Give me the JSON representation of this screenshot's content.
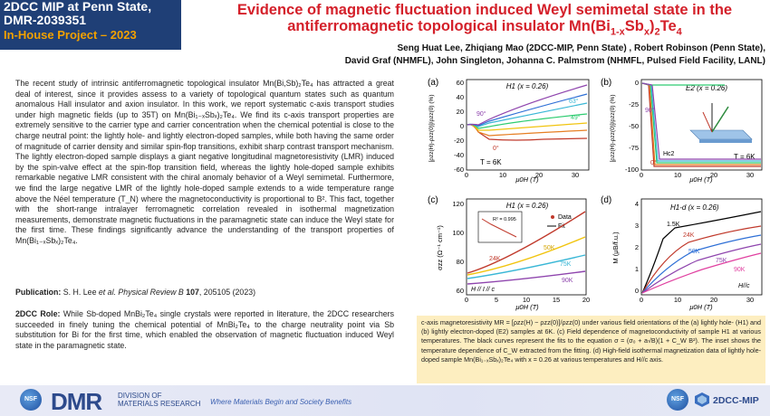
{
  "header": {
    "line1": "2DCC MIP at Penn State,",
    "line2": "DMR-2039351",
    "project": "In-House Project – 2023"
  },
  "title": {
    "line1": "Evidence of magnetic fluctuation induced Weyl semimetal state in the",
    "line2_pre": "antiferromagnetic topological insulator Mn(Bi",
    "line2_sub1": "1-x",
    "line2_mid": "Sb",
    "line2_sub2": "x",
    "line2_mid2": ")",
    "line2_sub3": "2",
    "line2_post": "Te",
    "line2_sub4": "4"
  },
  "authors": {
    "line1": "Seng Huat Lee, Zhiqiang Mao (2DCC-MIP, Penn State) , Robert Robinson (Penn State),",
    "line2": "David Graf (NHMFL), John Singleton, Johanna C. Palmstrom (NHMFL, Pulsed Field Facility, LANL)"
  },
  "body_text": "The recent study of intrinsic antiferromagnetic topological insulator Mn(Bi,Sb)₂Te₄ has attracted a great deal of interest, since it provides assess to a variety of topological quantum states such as quantum anomalous Hall insulator and axion insulator. In this work, we report systematic c-axis transport studies under high magnetic fields (up to 35T) on Mn(Bi₁₋ₓSbₓ)₂Te₄. We find its c-axis transport properties are extremely sensitive to the carrier type and carrier concentration when the chemical potential is close to the charge neutral point: the lightly hole- and lightly electron-doped samples, while both having the same order of magnitude of carrier density and similar spin-flop transitions, exhibit sharp contrast transport mechanism. The lightly electron-doped sample displays a giant negative longitudinal magnetoresistivity (LMR) induced by the spin-valve effect at the spin-flop transition field, whereas the lightly hole-doped sample exhibits remarkable negative LMR consistent with the chiral anomaly behavior of a Weyl semimetal. Furthermore, we find the large negative LMR of the lightly hole-doped sample extends to a wide temperature range above the Néel temperature (T_N) where the magnetoconductivity is proportional to B². This fact, together with the short-range intralayer ferromagnetic correlation revealed in isothermal magnetization measurements, demonstrate magnetic fluctuations in the paramagnetic state can induce the Weyl state for the first time. These findings significantly advance the understanding of the transport properties of Mn(Bi₁₋ₓSbₓ)₂Te₄.",
  "publication": {
    "label": "Publication:",
    "authors": " S. H. Lee ",
    "etal": "et al.",
    "journal": " Physical Review B",
    "volume": " 107",
    "rest": ", 205105 (2023)"
  },
  "para2": {
    "label": "2DCC Role:",
    "text": " While Sb-doped MnBi₂Te₄ single crystals were reported in literature, the 2DCC researchers succeeded in finely tuning the chemical potential of MnBi₂Te₄ to the charge neutrality point via Sb substitution for Bi for the first time, which enabled the observation of magnetic fluctuation induced Weyl state in the paramagnetic state."
  },
  "figures": {
    "a": {
      "label": "(a)",
      "sample": "H1 (x = 0.26)",
      "ylabel": "[ρzz(H)-ρzz(0)]/ρzz(0) (%)",
      "xlabel": "μ0H (T)",
      "temp": "T = 6K",
      "yticks": [
        "60",
        "40",
        "20",
        "0",
        "-20",
        "-40",
        "-60"
      ],
      "xticks": [
        "0",
        "10",
        "20",
        "30"
      ],
      "angles": [
        "90°",
        "63°",
        "49°",
        "0°"
      ]
    },
    "b": {
      "label": "(b)",
      "sample": "E2 (x = 0.26)",
      "ylabel": "[ρzz(H)-ρzz(0)]/ρzz(0) (%)",
      "xlabel": "μ0H (T)",
      "temp": "T = 6K",
      "yticks": [
        "0",
        "-25",
        "-50",
        "-75",
        "-100"
      ],
      "xticks": [
        "0",
        "10",
        "20",
        "30"
      ],
      "angles": [
        "90°",
        "0°"
      ],
      "hc2": "Hc2"
    },
    "c": {
      "label": "(c)",
      "sample": "H1 (x = 0.26)",
      "ylabel": "σzz (Ω⁻¹ cm⁻¹)",
      "xlabel": "μ0H (T)",
      "legend_data": "Data",
      "legend_fit": "Fit",
      "geom": "H // I // c",
      "yticks": [
        "120",
        "100",
        "80",
        "60"
      ],
      "xticks": [
        "0",
        "5",
        "10",
        "15",
        "20"
      ],
      "temps": [
        "24K",
        "50K",
        "75K",
        "90K"
      ],
      "inset_r2": "R² = 0.995"
    },
    "d": {
      "label": "(d)",
      "sample": "H1-d (x = 0.26)",
      "ylabel": "M (μB/f.u.)",
      "xlabel": "μ0H (T)",
      "geom": "H//c",
      "yticks": [
        "4",
        "3",
        "2",
        "1",
        "0"
      ],
      "xticks": [
        "0",
        "10",
        "20",
        "30"
      ],
      "temps": [
        "1.5K",
        "24K",
        "50K",
        "75K",
        "90K"
      ]
    }
  },
  "caption": "c-axis magnetoresistivity MR = [ρzz(H) − ρzz(0)]/ρzz(0) under various field orientations of the (a) lightly hole- (H1) and (b) lightly electron-doped (E2) samples at 6K. (c) Field dependence of magnetoconductivity of sample H1 at various temperatures. The black curves represent the fits to the equation σ = (σ₀ + a√B)(1 + C_W B²). The inset shows the temperature dependence of C_W extracted from the fitting. (d) High-field isothermal magnetization data of lightly hole-doped sample Mn(Bi₁₋ₓSbₓ)₂Te₄ with x = 0.26 at various temperatures and H//c axis.",
  "footer": {
    "nsf": "NSF",
    "dmr": "DMR",
    "division1": "DIVISION OF",
    "division2": "MATERIALS RESEARCH",
    "slogan": "Where Materials Begin and Society Benefits",
    "mip": "2DCC-MIP"
  },
  "colors": {
    "title_red": "#d4202a",
    "header_blue": "#1f3f76",
    "project_orange": "#f2a100",
    "caption_bg": "#fdeec0"
  }
}
